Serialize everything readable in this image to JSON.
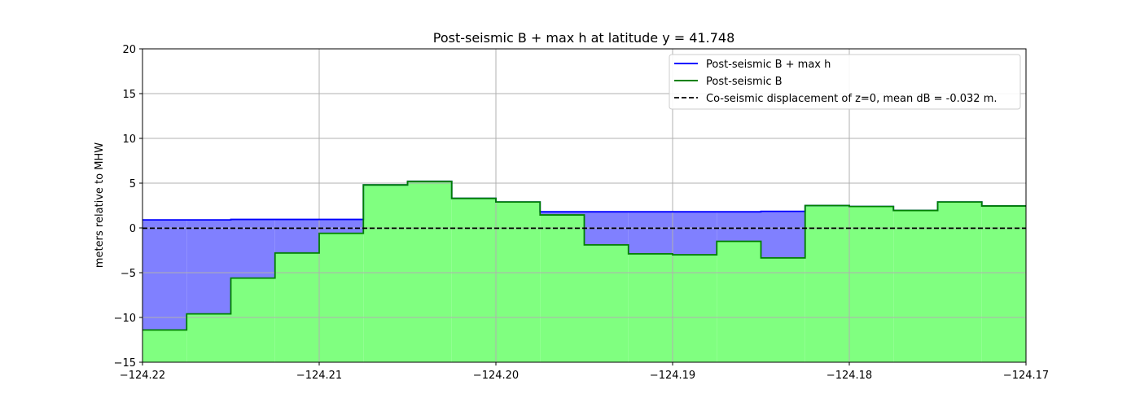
{
  "chart_data": {
    "type": "area",
    "title": "Post-seismic B + max h at latitude y = 41.748",
    "xlabel": "",
    "ylabel": "meters relative to MHW",
    "xlim": [
      -124.22,
      -124.17
    ],
    "ylim": [
      -15,
      20
    ],
    "x_ticks": [
      -124.22,
      -124.21,
      -124.2,
      -124.19,
      -124.18,
      -124.17
    ],
    "x_tick_labels": [
      "−124.22",
      "−124.21",
      "−124.20",
      "−124.19",
      "−124.18",
      "−124.17"
    ],
    "y_ticks": [
      -15,
      -10,
      -5,
      0,
      5,
      10,
      15,
      20
    ],
    "y_tick_labels": [
      "−15",
      "−10",
      "−5",
      "0",
      "5",
      "10",
      "15",
      "20"
    ],
    "grid": true,
    "legend_position": "top-right",
    "x_edges": [
      -124.22,
      -124.2175,
      -124.215,
      -124.2125,
      -124.21,
      -124.2075,
      -124.205,
      -124.2025,
      -124.2,
      -124.1975,
      -124.195,
      -124.1925,
      -124.19,
      -124.1875,
      -124.185,
      -124.1825,
      -124.18,
      -124.1775,
      -124.175,
      -124.1725,
      -124.17
    ],
    "series": [
      {
        "name": "Post-seismic B + max h",
        "color": "#0000ff",
        "fill": "#8080ff",
        "values": [
          0.9,
          0.9,
          0.95,
          0.95,
          0.95,
          4.8,
          5.2,
          3.3,
          2.9,
          1.8,
          1.8,
          1.8,
          1.8,
          1.8,
          1.85,
          2.5,
          2.4,
          1.95,
          2.9,
          2.45
        ]
      },
      {
        "name": "Post-seismic B",
        "color": "#008000",
        "fill": "#80ff80",
        "values": [
          -11.4,
          -9.6,
          -5.6,
          -2.8,
          -0.6,
          4.8,
          5.2,
          3.3,
          2.9,
          1.45,
          -1.9,
          -2.9,
          -3.0,
          -1.5,
          -3.35,
          2.5,
          2.4,
          1.95,
          2.9,
          2.45
        ]
      }
    ],
    "reference_line": {
      "name": "Co-seismic displacement of z=0, mean dB = -0.032 m.",
      "y": -0.032,
      "color": "#000000",
      "style": "dashed"
    }
  }
}
